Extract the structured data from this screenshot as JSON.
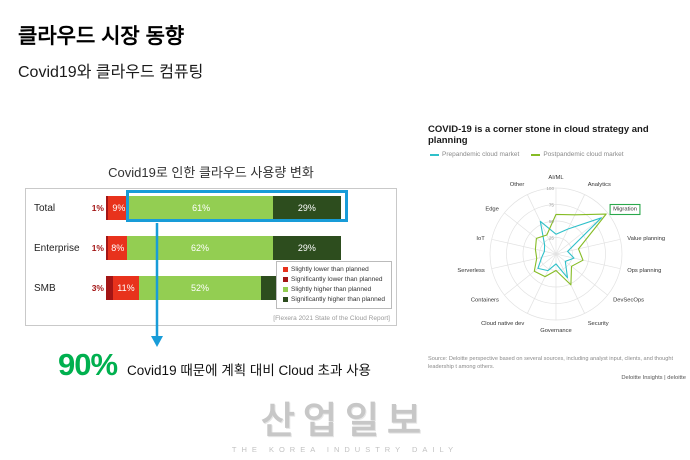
{
  "page": {
    "title": "클라우드 시장 동향",
    "subtitle": "Covid19와 클라우드 컴퓨팅"
  },
  "takeaway": {
    "percent": "90%",
    "text": "Covid19 때문에 계획 대비 Cloud 초과 사용"
  },
  "watermark": {
    "name": "산업일보",
    "subtext": "THE KOREA INDUSTRY DAILY"
  },
  "chart_data": [
    {
      "type": "bar",
      "title": "Covid19로 인한 클라우드 사용량 변화",
      "caption": "[Flexera 2021 State of the Cloud Report]",
      "stacked": true,
      "orientation": "horizontal",
      "xlim": [
        0,
        100
      ],
      "categories": [
        "Total",
        "Enterprise",
        "SMB"
      ],
      "series": [
        {
          "name": "Significantly lower than planned",
          "color": "#a31515",
          "values": [
            1,
            1,
            3
          ]
        },
        {
          "name": "Slightly lower than planned",
          "color": "#e8321c",
          "values": [
            9,
            8,
            11
          ]
        },
        {
          "name": "Slightly higher than planned",
          "color": "#93ce52",
          "values": [
            61,
            62,
            52
          ]
        },
        {
          "name": "Significantly higher than planned",
          "color": "#2d4d1e",
          "values": [
            29,
            29,
            34
          ]
        }
      ],
      "legend_order": [
        1,
        0,
        2,
        3
      ],
      "highlight": {
        "note": "blue box around Total row higher-than-planned segments (61% + 29% = 90%)",
        "color": "#189cd8"
      }
    },
    {
      "type": "radar",
      "title": "COVID-19 is a corner stone in cloud strategy and planning",
      "max": 100,
      "ticks": [
        25,
        50,
        75,
        100
      ],
      "axes": [
        "AI/ML",
        "Analytics",
        "Migration",
        "Value planning",
        "Ops planning",
        "DevSecOps",
        "Security",
        "Governance",
        "Cloud native dev",
        "Containers",
        "Serverless",
        "IoT",
        "Edge",
        "Other"
      ],
      "highlight_axis": "Migration",
      "series": [
        {
          "name": "Prepandemic cloud market",
          "color": "#2fc0c9",
          "values": [
            30,
            42,
            88,
            18,
            28,
            18,
            40,
            15,
            28,
            35,
            22,
            18,
            22,
            55
          ]
        },
        {
          "name": "Postpandemic cloud market",
          "color": "#86bc25",
          "values": [
            60,
            66,
            97,
            35,
            42,
            30,
            52,
            25,
            38,
            42,
            30,
            32,
            38,
            32
          ]
        }
      ],
      "source": "Source: Deloitte perspective based on several sources, including analyst input, clients, and thought leadership t among others.",
      "credit": "Deloitte Insights | deloitte"
    }
  ]
}
